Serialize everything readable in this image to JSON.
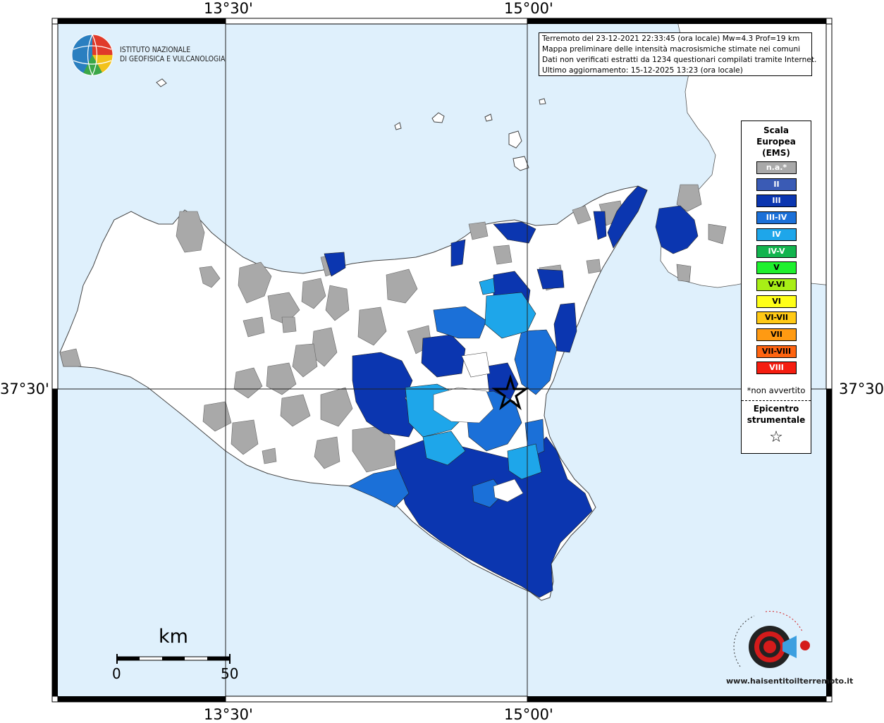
{
  "map": {
    "top_lon_labels": [
      "13°30'",
      "15°00'"
    ],
    "bottom_lon_labels": [
      "13°30'",
      "15°00'"
    ],
    "left_lat_label": "37°30'",
    "right_lat_label": "37°30'",
    "colors": {
      "sea": "#dff0fc",
      "land_blank": "#ffffff",
      "not_felt": "#a9a9a9",
      "II": "#3a5bb5",
      "III": "#0b36b0",
      "III-IV": "#1b70d8",
      "IV": "#1ea6ea"
    }
  },
  "header": {
    "org_line1": "ISTITUTO NAZIONALE",
    "org_line2": "DI GEOFISICA E VULCANOLOGIA"
  },
  "info": {
    "line1": "Terremoto del 23-12-2021 22:33:45 (ora locale) Mw=4.3 Prof=19 km",
    "line2": "Mappa preliminare delle intensità macrosismiche stimate nei comuni",
    "line3": "Dati non verificati estratti da 1234 questionari compilati tramite Internet.",
    "line4": "Ultimo aggiornamento: 15-12-2025 13:23 (ora locale)"
  },
  "legend": {
    "title_line1": "Scala",
    "title_line2": "Europea",
    "title_line3": "(EMS)",
    "items": [
      {
        "label": "n.a.*",
        "color": "#a9a9a9",
        "text_color": "#ffffff"
      },
      {
        "label": "II",
        "color": "#3a5bb5",
        "text_color": "#ffffff"
      },
      {
        "label": "III",
        "color": "#0b36b0",
        "text_color": "#ffffff"
      },
      {
        "label": "III-IV",
        "color": "#1b70d8",
        "text_color": "#ffffff"
      },
      {
        "label": "IV",
        "color": "#1ea6ea",
        "text_color": "#ffffff"
      },
      {
        "label": "IV-V",
        "color": "#12b44e",
        "text_color": "#ffffff"
      },
      {
        "label": "V",
        "color": "#1ef02e",
        "text_color": "#000000"
      },
      {
        "label": "V-VI",
        "color": "#a8ee16",
        "text_color": "#000000"
      },
      {
        "label": "VI",
        "color": "#ffff18",
        "text_color": "#000000"
      },
      {
        "label": "VI-VII",
        "color": "#ffc915",
        "text_color": "#000000"
      },
      {
        "label": "VII",
        "color": "#ff9a12",
        "text_color": "#000000"
      },
      {
        "label": "VII-VIII",
        "color": "#ff6410",
        "text_color": "#000000"
      },
      {
        "label": "VIII",
        "color": "#f51d10",
        "text_color": "#ffffff"
      }
    ],
    "not_felt_note": "*non avvertito",
    "epicenter_line1": "Epicentro",
    "epicenter_line2": "strumentale",
    "epicenter_symbol": "☆"
  },
  "scalebar": {
    "unit": "km",
    "start": "0",
    "end": "50"
  },
  "brand": {
    "text": "www.haisentitoilterremoto.it"
  }
}
